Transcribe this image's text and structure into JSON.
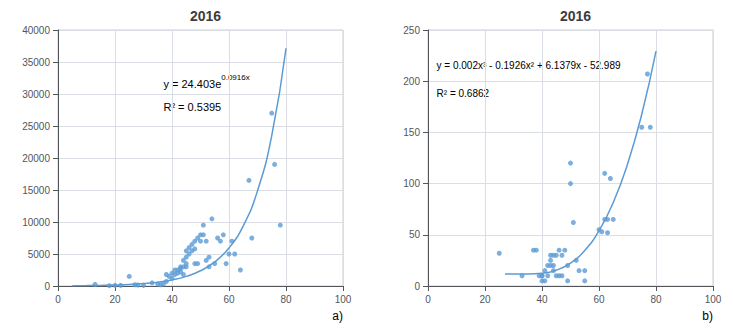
{
  "chart_data": [
    {
      "type": "scatter",
      "title": "2016",
      "xlim": [
        0,
        100
      ],
      "xticks": [
        0,
        20,
        40,
        60,
        80,
        100
      ],
      "ylim": [
        0,
        40000
      ],
      "yticks": [
        0,
        5000,
        10000,
        15000,
        20000,
        25000,
        30000,
        35000,
        40000
      ],
      "grid": true,
      "series": [
        {
          "type": "scatter",
          "marker": "circle",
          "color": "#5B9BD5",
          "x": [
            13,
            18,
            20,
            22,
            25,
            27,
            28,
            30,
            33,
            35,
            36,
            37,
            38,
            38,
            39,
            40,
            40,
            41,
            41,
            42,
            42,
            43,
            43,
            43,
            44,
            44,
            44,
            45,
            45,
            45,
            45,
            46,
            46,
            47,
            47,
            48,
            48,
            48,
            49,
            49,
            50,
            50,
            51,
            51,
            52,
            52,
            53,
            53,
            54,
            55,
            56,
            57,
            58,
            59,
            60,
            61,
            62,
            64,
            67,
            68,
            75,
            76,
            78
          ],
          "values": [
            250,
            50,
            100,
            100,
            1500,
            200,
            150,
            100,
            500,
            300,
            200,
            300,
            1800,
            700,
            1500,
            2000,
            1200,
            2500,
            1800,
            2500,
            2000,
            2700,
            3000,
            2200,
            4000,
            3000,
            1800,
            4500,
            5500,
            3500,
            3000,
            6000,
            5000,
            6500,
            5500,
            5800,
            7000,
            3500,
            7500,
            3500,
            8000,
            7000,
            9500,
            8000,
            7000,
            4000,
            4500,
            3000,
            10500,
            3500,
            7500,
            7000,
            8000,
            3500,
            5000,
            7000,
            5000,
            2500,
            16500,
            7500,
            27000,
            19000,
            9500
          ]
        },
        {
          "type": "line",
          "line_style": "solid",
          "color": "#5B9BD5",
          "x": [
            5,
            10,
            15,
            20,
            25,
            30,
            35,
            40,
            45,
            50,
            55,
            60,
            65,
            70,
            75,
            80
          ],
          "values": [
            38.58,
            60.99,
            96.42,
            152.44,
            240.98,
            380.98,
            602.29,
            952.18,
            1505.3,
            2379.6,
            3762.0,
            5947.3,
            9402.2,
            14864.1,
            23499.0,
            37149.4
          ]
        }
      ],
      "annotations": [
        {
          "text": "y = 24.403e",
          "superscript": "0.0916x"
        },
        {
          "text": "R² = 0.5395"
        },
        {
          "text": "a)"
        }
      ]
    },
    {
      "type": "scatter",
      "title": "2016",
      "xlim": [
        0,
        100
      ],
      "xticks": [
        0,
        20,
        40,
        60,
        80,
        100
      ],
      "ylim": [
        0,
        250
      ],
      "yticks": [
        0,
        50,
        100,
        150,
        200,
        250
      ],
      "grid": true,
      "series": [
        {
          "type": "scatter",
          "marker": "circle",
          "color": "#5B9BD5",
          "x": [
            25,
            33,
            37,
            38,
            39,
            40,
            40,
            40,
            41,
            41,
            42,
            42,
            43,
            43,
            43,
            44,
            44,
            44,
            45,
            45,
            46,
            46,
            47,
            47,
            48,
            49,
            49,
            50,
            50,
            51,
            52,
            53,
            55,
            55,
            60,
            61,
            62,
            62,
            63,
            63,
            64,
            65,
            75,
            77,
            78
          ],
          "values": [
            32,
            10,
            35,
            35,
            10,
            10,
            10,
            5,
            15,
            5,
            20,
            10,
            25,
            20,
            30,
            20,
            30,
            15,
            30,
            10,
            35,
            10,
            30,
            10,
            35,
            5,
            20,
            120,
            100,
            62,
            25,
            15,
            5,
            15,
            55,
            53,
            65,
            110,
            52,
            65,
            105,
            65,
            155,
            207,
            155
          ]
        },
        {
          "type": "line",
          "line_style": "solid",
          "color": "#5B9BD5",
          "x": [
            27,
            30,
            35,
            40,
            45,
            50,
            55,
            60,
            65,
            70,
            75,
            80
          ],
          "values": [
            11.695,
            11.808,
            11.6525,
            12.367,
            15.4515,
            22.406,
            34.7305,
            53.925,
            81.4895,
            118.924,
            167.7285,
            229.403
          ]
        }
      ],
      "annotations": [
        {
          "text": "y = 0.002x³ - 0.1926x² + 6.1379x - 52.989"
        },
        {
          "text": "R² = 0.6862"
        },
        {
          "text": "b)"
        }
      ]
    }
  ]
}
